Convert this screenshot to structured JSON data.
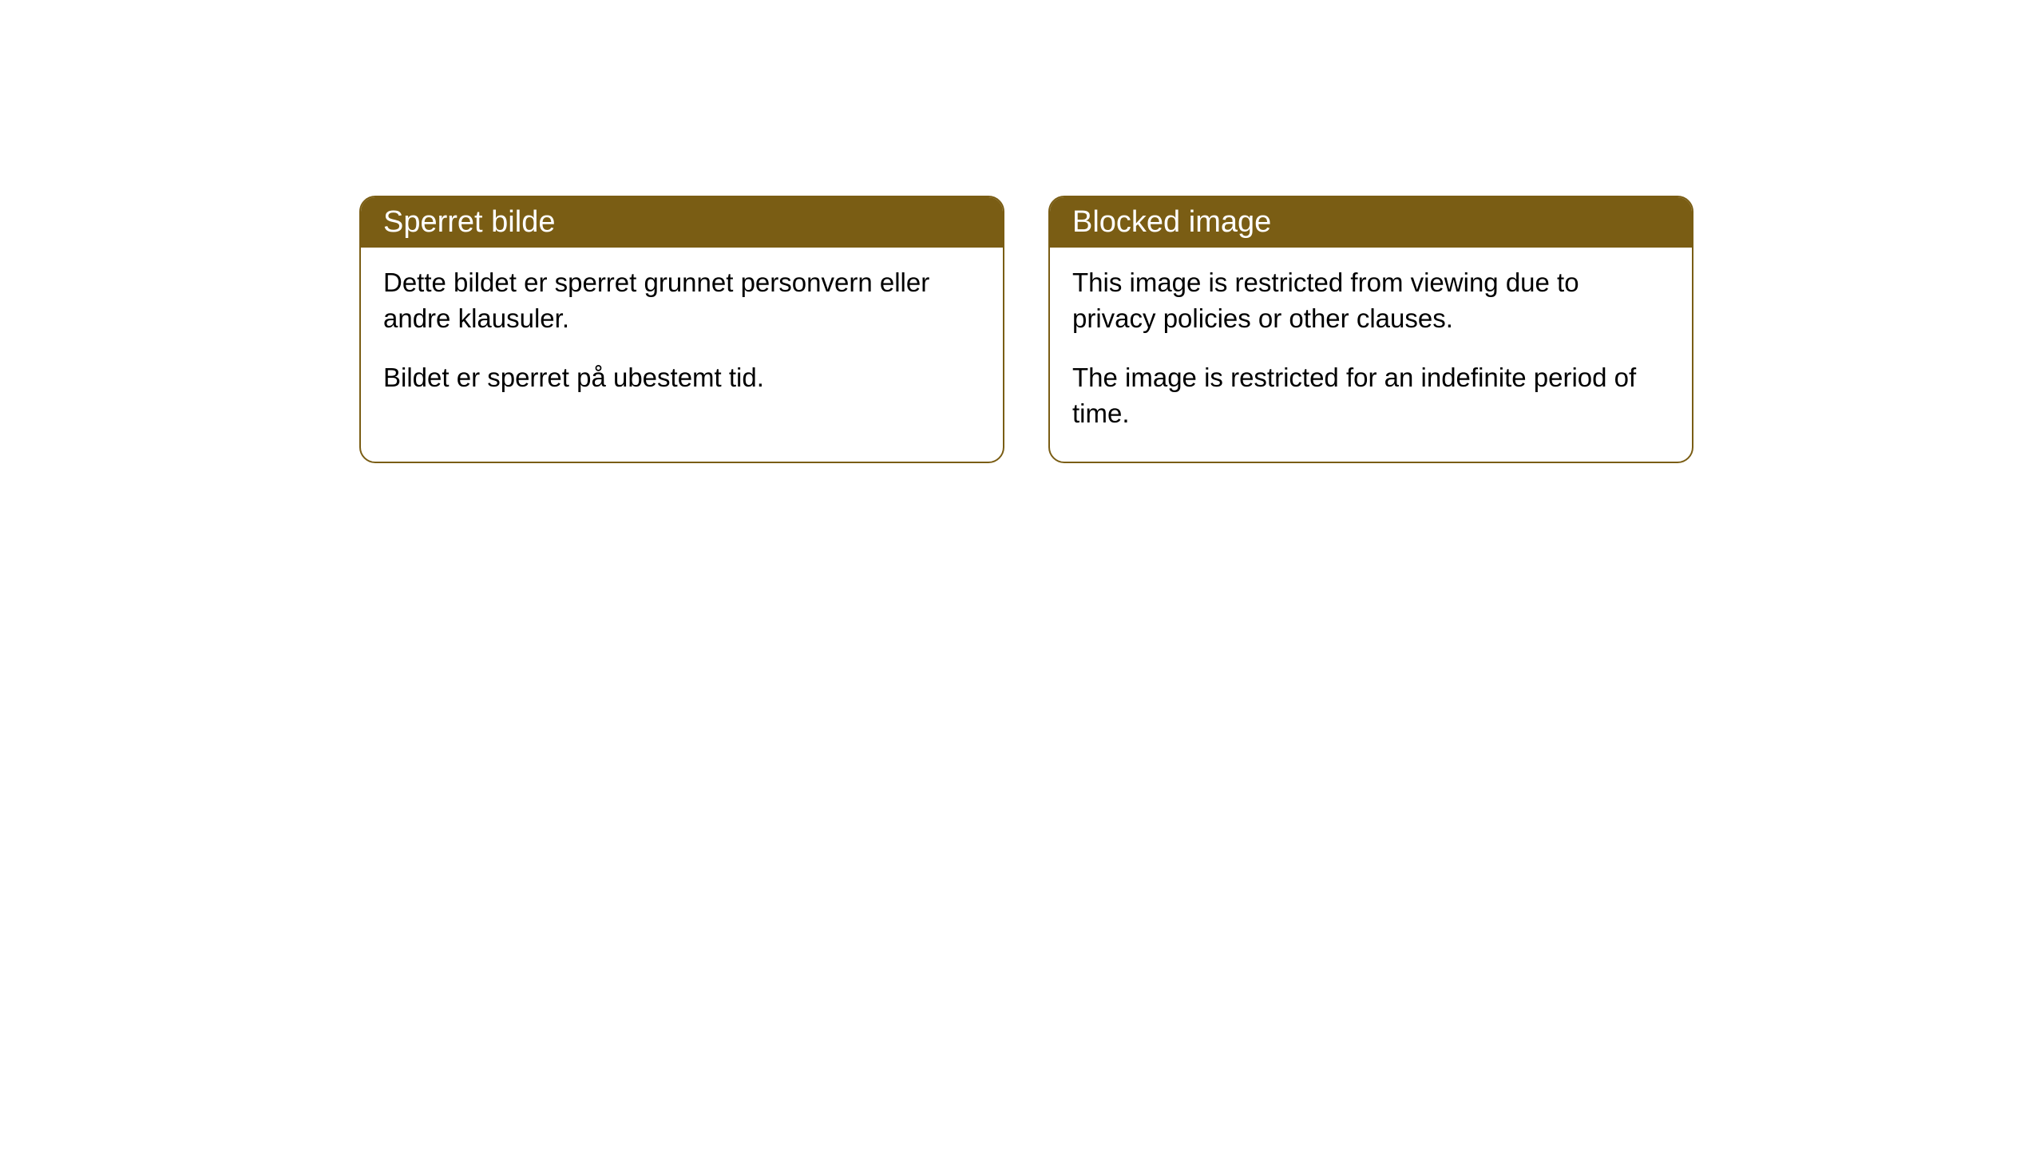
{
  "cards": [
    {
      "title": "Sperret bilde",
      "paragraph1": "Dette bildet er sperret grunnet personvern eller andre klausuler.",
      "paragraph2": "Bildet er sperret på ubestemt tid."
    },
    {
      "title": "Blocked image",
      "paragraph1": "This image is restricted from viewing due to privacy policies or other clauses.",
      "paragraph2": "The image is restricted for an indefinite period of time."
    }
  ],
  "styling": {
    "header_bg_color": "#7a5d14",
    "header_text_color": "#ffffff",
    "border_color": "#7a5d14",
    "body_bg_color": "#ffffff",
    "body_text_color": "#000000",
    "border_radius": 20,
    "title_fontsize": 38,
    "body_fontsize": 33
  }
}
